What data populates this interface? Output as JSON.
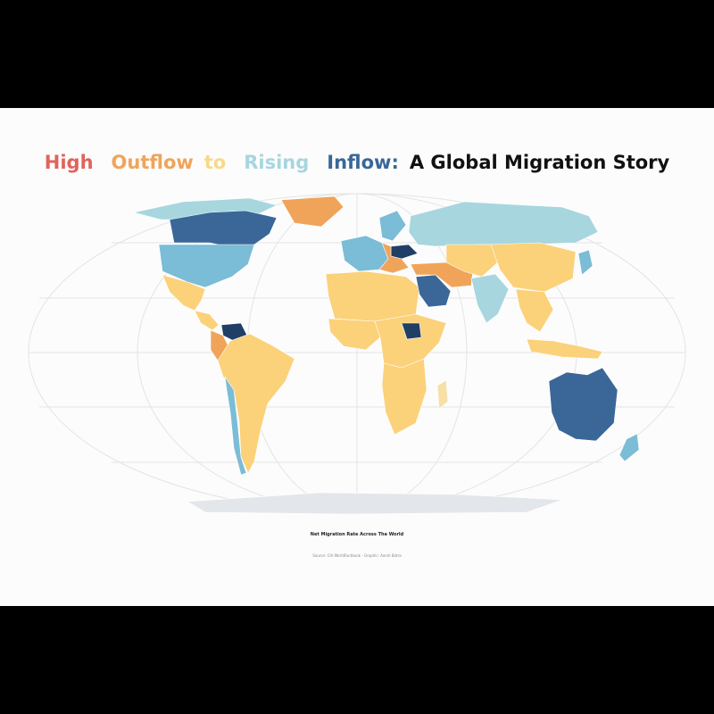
{
  "title": {
    "word_high": "High",
    "word_outflow": "Outflow",
    "word_to": "to",
    "word_rising": "Rising",
    "word_inflow": "Inflow:",
    "rest": "A Global Migration Story"
  },
  "caption": "Net Migration Rate Across The World",
  "source": "Source: CIA WorldFactbook - Graphic: Aarsh Batra",
  "colors": {
    "high_outflow": "#e0645c",
    "outflow": "#f0a45a",
    "neutral_low": "#fbd17a",
    "neutral": "#f7e0a8",
    "rising_inflow": "#a7d6df",
    "inflow": "#7bbcd6",
    "high_inflow": "#3a6798",
    "highest_inflow": "#1f3f66",
    "antarctica": "#e3e6ea",
    "graticule": "#e4e4e4"
  },
  "regions": [
    {
      "name": "north-america-arctic",
      "color": "#a7d6df"
    },
    {
      "name": "greenland",
      "color": "#f0a45a"
    },
    {
      "name": "canada",
      "color": "#3a6798"
    },
    {
      "name": "usa",
      "color": "#7bbcd6"
    },
    {
      "name": "mexico",
      "color": "#fbd17a"
    },
    {
      "name": "central-america",
      "color": "#fbd17a"
    },
    {
      "name": "venezuela",
      "color": "#1f3f66"
    },
    {
      "name": "colombia",
      "color": "#f0a45a"
    },
    {
      "name": "south-america",
      "color": "#fbd17a"
    },
    {
      "name": "chile",
      "color": "#7bbcd6"
    },
    {
      "name": "scandinavia",
      "color": "#7bbcd6"
    },
    {
      "name": "western-europe",
      "color": "#7bbcd6"
    },
    {
      "name": "ukraine",
      "color": "#1f3f66"
    },
    {
      "name": "eastern-europe",
      "color": "#f0a45a"
    },
    {
      "name": "russia",
      "color": "#a7d6df"
    },
    {
      "name": "north-africa",
      "color": "#fbd17a"
    },
    {
      "name": "west-africa",
      "color": "#fbd17a"
    },
    {
      "name": "central-africa",
      "color": "#fbd17a"
    },
    {
      "name": "southern-africa",
      "color": "#fbd17a"
    },
    {
      "name": "south-sudan",
      "color": "#1f3f66"
    },
    {
      "name": "saudi-arabia",
      "color": "#3a6798"
    },
    {
      "name": "middle-east",
      "color": "#f0a45a"
    },
    {
      "name": "central-asia",
      "color": "#fbd17a"
    },
    {
      "name": "india",
      "color": "#a7d6df"
    },
    {
      "name": "china",
      "color": "#fbd17a"
    },
    {
      "name": "southeast-asia",
      "color": "#fbd17a"
    },
    {
      "name": "japan",
      "color": "#7bbcd6"
    },
    {
      "name": "indonesia",
      "color": "#fbd17a"
    },
    {
      "name": "australia",
      "color": "#3a6798"
    },
    {
      "name": "new-zealand",
      "color": "#7bbcd6"
    },
    {
      "name": "madagascar",
      "color": "#f7e0a8"
    },
    {
      "name": "antarctica",
      "color": "#e3e6ea"
    }
  ]
}
